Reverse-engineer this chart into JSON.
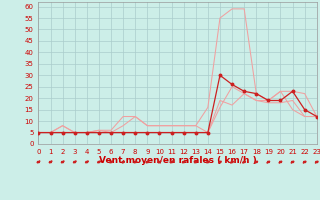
{
  "x": [
    0,
    1,
    2,
    3,
    4,
    5,
    6,
    7,
    8,
    9,
    10,
    11,
    12,
    13,
    14,
    15,
    16,
    17,
    18,
    19,
    20,
    21,
    22,
    23
  ],
  "line_rafales": [
    5,
    5,
    8,
    5,
    5,
    6,
    6,
    12,
    12,
    8,
    8,
    8,
    8,
    8,
    16,
    55,
    59,
    59,
    22,
    19,
    23,
    23,
    22,
    12
  ],
  "line_moy_light": [
    5,
    5,
    8,
    5,
    5,
    6,
    5,
    8,
    12,
    8,
    8,
    8,
    8,
    8,
    5,
    19,
    17,
    22,
    19,
    19,
    23,
    15,
    12,
    12
  ],
  "line_moy2": [
    5,
    5,
    5,
    5,
    5,
    5,
    5,
    5,
    5,
    5,
    5,
    5,
    5,
    5,
    5,
    16,
    25,
    22,
    19,
    18,
    18,
    19,
    12,
    12
  ],
  "line_moy_dark": [
    5,
    5,
    5,
    5,
    5,
    5,
    5,
    5,
    5,
    5,
    5,
    5,
    5,
    5,
    5,
    30,
    26,
    23,
    22,
    19,
    19,
    23,
    15,
    12
  ],
  "bg_color": "#cceee8",
  "grid_color": "#aacccc",
  "line_color_light1": "#f0a0a0",
  "line_color_light2": "#f0a0a0",
  "line_color_dark": "#cc2020",
  "xlabel": "Vent moyen/en rafales ( km/h )",
  "xlim": [
    0,
    23
  ],
  "ylim": [
    0,
    62
  ],
  "yticks": [
    0,
    5,
    10,
    15,
    20,
    25,
    30,
    35,
    40,
    45,
    50,
    55,
    60
  ],
  "xticks": [
    0,
    1,
    2,
    3,
    4,
    5,
    6,
    7,
    8,
    9,
    10,
    11,
    12,
    13,
    14,
    15,
    16,
    17,
    18,
    19,
    20,
    21,
    22,
    23
  ],
  "tick_fontsize": 5.0,
  "xlabel_fontsize": 6.5,
  "arrow_angles_deg": [
    225,
    225,
    225,
    225,
    225,
    225,
    225,
    200,
    225,
    225,
    225,
    225,
    225,
    225,
    225,
    45,
    45,
    45,
    45,
    45,
    45,
    45,
    45,
    45
  ]
}
